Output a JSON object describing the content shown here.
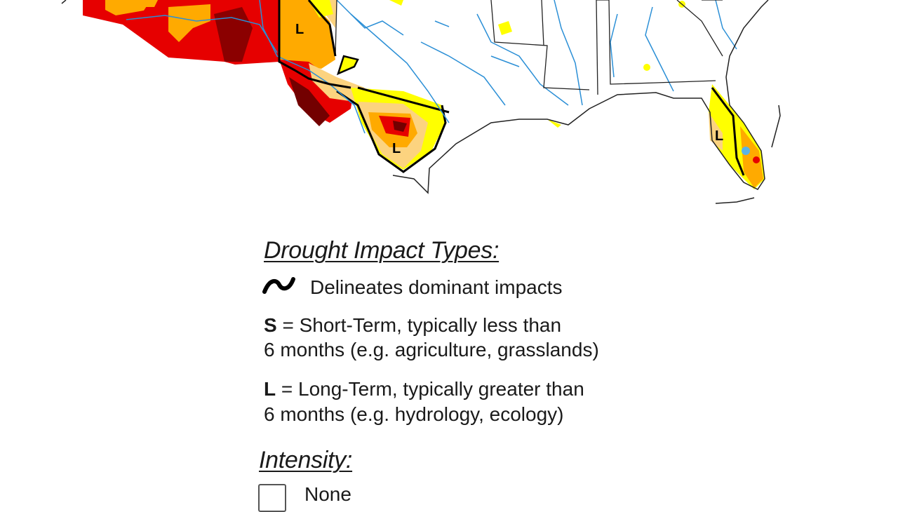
{
  "map": {
    "impact_labels": [
      "L",
      "L",
      "L"
    ],
    "drought_colors": {
      "D0_abnormally_dry": "#ffff00",
      "D1_moderate": "#fcd37f",
      "D2_severe": "#ffaa00",
      "D3_extreme": "#e60000",
      "D4_exceptional": "#730000"
    },
    "river_color": "#2b8fd6",
    "boundary_color": "#000000"
  },
  "legend": {
    "impact_heading": "Drought Impact Types:",
    "delineates_icon": "squiggle-line-icon",
    "delineates_text": "Delineates dominant impacts",
    "short_term": {
      "code": "S",
      "line1_rest": " = Short-Term, typically less than",
      "line2": "6 months (e.g. agriculture, grasslands)"
    },
    "long_term": {
      "code": "L",
      "line1_rest": " = Long-Term, typically greater than",
      "line2": "6 months (e.g. hydrology, ecology)"
    },
    "intensity_heading": "Intensity:",
    "intensity_items": [
      {
        "label": "None",
        "color": "#ffffff"
      }
    ]
  }
}
